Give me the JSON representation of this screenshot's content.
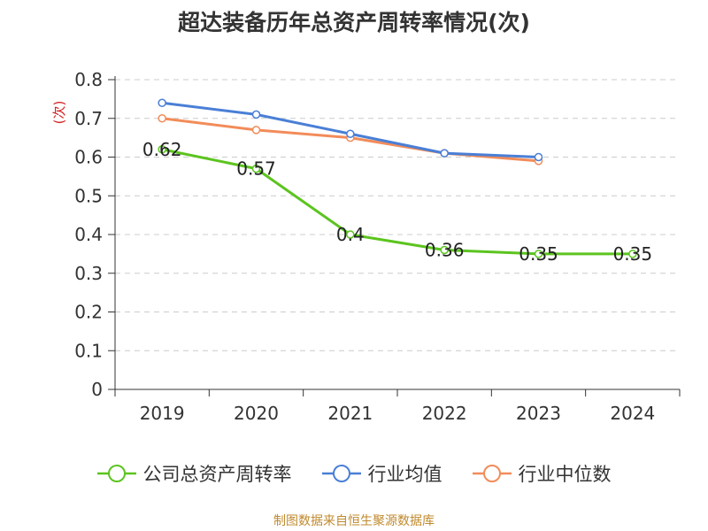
{
  "title": "超达装备历年总资产周转率情况(次)",
  "source_note": "制图数据来自恒生聚源数据库",
  "chart_data": {
    "type": "line",
    "title": "超达装备历年总资产周转率情况(次)",
    "xlabel": "",
    "ylabel": "(次)",
    "categories": [
      "2019",
      "2020",
      "2021",
      "2022",
      "2023",
      "2024"
    ],
    "ylim": [
      0,
      0.8
    ],
    "yticks": [
      "0",
      "0.1",
      "0.2",
      "0.3",
      "0.4",
      "0.5",
      "0.6",
      "0.7",
      "0.8"
    ],
    "grid": true,
    "legend_position": "bottom",
    "series": [
      {
        "name": "公司总资产周转率",
        "color": "#5cc41f",
        "values": [
          0.62,
          0.57,
          0.4,
          0.36,
          0.35,
          0.35
        ],
        "data_labels": [
          "0.62",
          "0.57",
          "0.4",
          "0.36",
          "0.35",
          "0.35"
        ]
      },
      {
        "name": "行业均值",
        "color": "#4a7fd6",
        "values": [
          0.74,
          0.71,
          0.66,
          0.61,
          0.6,
          null
        ]
      },
      {
        "name": "行业中位数",
        "color": "#f28c5a",
        "values": [
          0.7,
          0.67,
          0.65,
          0.61,
          0.59,
          null
        ]
      }
    ]
  }
}
